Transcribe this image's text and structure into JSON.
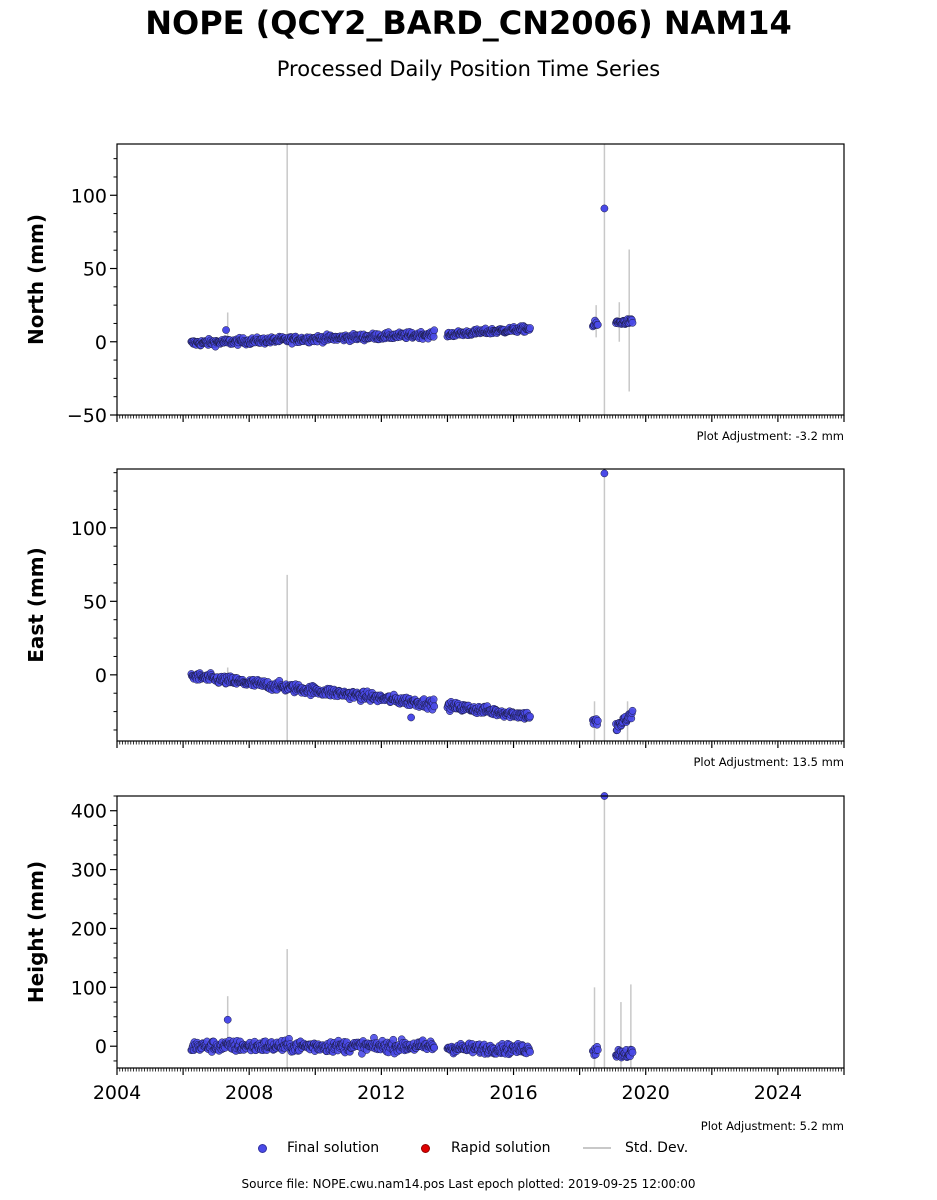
{
  "header": {
    "title": "NOPE (QCY2_BARD_CN2006) NAM14",
    "subtitle": "Processed Daily Position Time Series"
  },
  "legend": {
    "final_label": "Final solution",
    "rapid_label": "Rapid solution",
    "std_label": "Std. Dev.",
    "final_color": "#4a4ae8",
    "rapid_color": "#e00000",
    "std_color": "#c8c8c8"
  },
  "footer": {
    "text": "Source file: NOPE.cwu.nam14.pos  Last epoch plotted: 2019-09-25 12:00:00"
  },
  "chart_data": [
    {
      "type": "scatter",
      "ylabel": "North (mm)",
      "xlim": [
        2004,
        2026
      ],
      "ylim": [
        -50,
        135
      ],
      "yticks": [
        -50,
        0,
        50,
        100
      ],
      "ytick_labels": [
        "−50",
        "0",
        "50",
        "100"
      ],
      "xticks": [
        2004,
        2008,
        2012,
        2016,
        2020,
        2024
      ],
      "xtick_labels": [
        "",
        "",
        "",
        "",
        "",
        ""
      ],
      "adjustment_label": "Plot Adjustment: -3.2 mm",
      "segments": [
        {
          "from": 2006.25,
          "to": 2013.6,
          "y0": -1,
          "y1": 5,
          "noise": 1.6
        },
        {
          "from": 2014.0,
          "to": 2016.5,
          "y0": 5,
          "y1": 9,
          "noise": 1.4
        },
        {
          "from": 2018.4,
          "to": 2018.55,
          "y0": 11,
          "y1": 12,
          "noise": 2
        },
        {
          "from": 2019.1,
          "to": 2019.6,
          "y0": 13,
          "y1": 14,
          "noise": 1.2
        }
      ],
      "outliers": [
        {
          "x": 2018.75,
          "y": 91
        },
        {
          "x": 2007.3,
          "y": 8
        }
      ],
      "stddev_bars": [
        {
          "x": 2009.15,
          "y0": -50,
          "y1": 135
        },
        {
          "x": 2018.75,
          "y0": -50,
          "y1": 135
        },
        {
          "x": 2019.5,
          "y0": -34,
          "y1": 63
        },
        {
          "x": 2007.35,
          "y0": -2,
          "y1": 20
        },
        {
          "x": 2018.5,
          "y0": 3,
          "y1": 25
        },
        {
          "x": 2019.2,
          "y0": 0,
          "y1": 27
        }
      ]
    },
    {
      "type": "scatter",
      "ylabel": "East (mm)",
      "xlim": [
        2004,
        2026
      ],
      "ylim": [
        -45,
        140
      ],
      "yticks": [
        0,
        50,
        100
      ],
      "ytick_labels": [
        "0",
        "50",
        "100"
      ],
      "xticks": [
        2004,
        2008,
        2012,
        2016,
        2020,
        2024
      ],
      "xtick_labels": [
        "",
        "",
        "",
        "",
        "",
        ""
      ],
      "adjustment_label": "Plot Adjustment: 13.5 mm",
      "segments": [
        {
          "from": 2006.25,
          "to": 2013.6,
          "y0": -1,
          "y1": -20,
          "noise": 2.2
        },
        {
          "from": 2014.0,
          "to": 2016.5,
          "y0": -21,
          "y1": -28,
          "noise": 2.0
        },
        {
          "from": 2018.4,
          "to": 2018.55,
          "y0": -32,
          "y1": -33,
          "noise": 3
        },
        {
          "from": 2019.1,
          "to": 2019.6,
          "y0": -36,
          "y1": -27,
          "noise": 2.5
        }
      ],
      "outliers": [
        {
          "x": 2018.75,
          "y": 137
        },
        {
          "x": 2012.9,
          "y": -29
        }
      ],
      "stddev_bars": [
        {
          "x": 2009.15,
          "y0": -45,
          "y1": 68
        },
        {
          "x": 2018.75,
          "y0": -45,
          "y1": 140
        },
        {
          "x": 2007.35,
          "y0": -8,
          "y1": 5
        },
        {
          "x": 2018.45,
          "y0": -45,
          "y1": -18
        },
        {
          "x": 2019.45,
          "y0": -45,
          "y1": -18
        }
      ]
    },
    {
      "type": "scatter",
      "ylabel": "Height (mm)",
      "xlim": [
        2004,
        2026
      ],
      "ylim": [
        -37,
        425
      ],
      "yticks": [
        0,
        100,
        200,
        300,
        400
      ],
      "ytick_labels": [
        "0",
        "100",
        "200",
        "300",
        "400"
      ],
      "xticks": [
        2004,
        2008,
        2012,
        2016,
        2020,
        2024
      ],
      "xtick_labels": [
        "2004",
        "2008",
        "2012",
        "2016",
        "2020",
        "2024"
      ],
      "adjustment_label": "Plot Adjustment: 5.2 mm",
      "segments": [
        {
          "from": 2006.25,
          "to": 2013.6,
          "y0": 0,
          "y1": 0,
          "noise": 7
        },
        {
          "from": 2014.0,
          "to": 2016.5,
          "y0": -3,
          "y1": -5,
          "noise": 6
        },
        {
          "from": 2018.4,
          "to": 2018.55,
          "y0": -5,
          "y1": -5,
          "noise": 8
        },
        {
          "from": 2019.1,
          "to": 2019.6,
          "y0": -12,
          "y1": -12,
          "noise": 6
        }
      ],
      "outliers": [
        {
          "x": 2018.75,
          "y": 425
        },
        {
          "x": 2007.35,
          "y": 45
        }
      ],
      "stddev_bars": [
        {
          "x": 2009.15,
          "y0": -37,
          "y1": 165
        },
        {
          "x": 2018.75,
          "y0": -37,
          "y1": 425
        },
        {
          "x": 2007.35,
          "y0": 5,
          "y1": 85
        },
        {
          "x": 2018.45,
          "y0": -37,
          "y1": 100
        },
        {
          "x": 2019.25,
          "y0": -37,
          "y1": 75
        },
        {
          "x": 2019.55,
          "y0": -37,
          "y1": 105
        }
      ]
    }
  ]
}
